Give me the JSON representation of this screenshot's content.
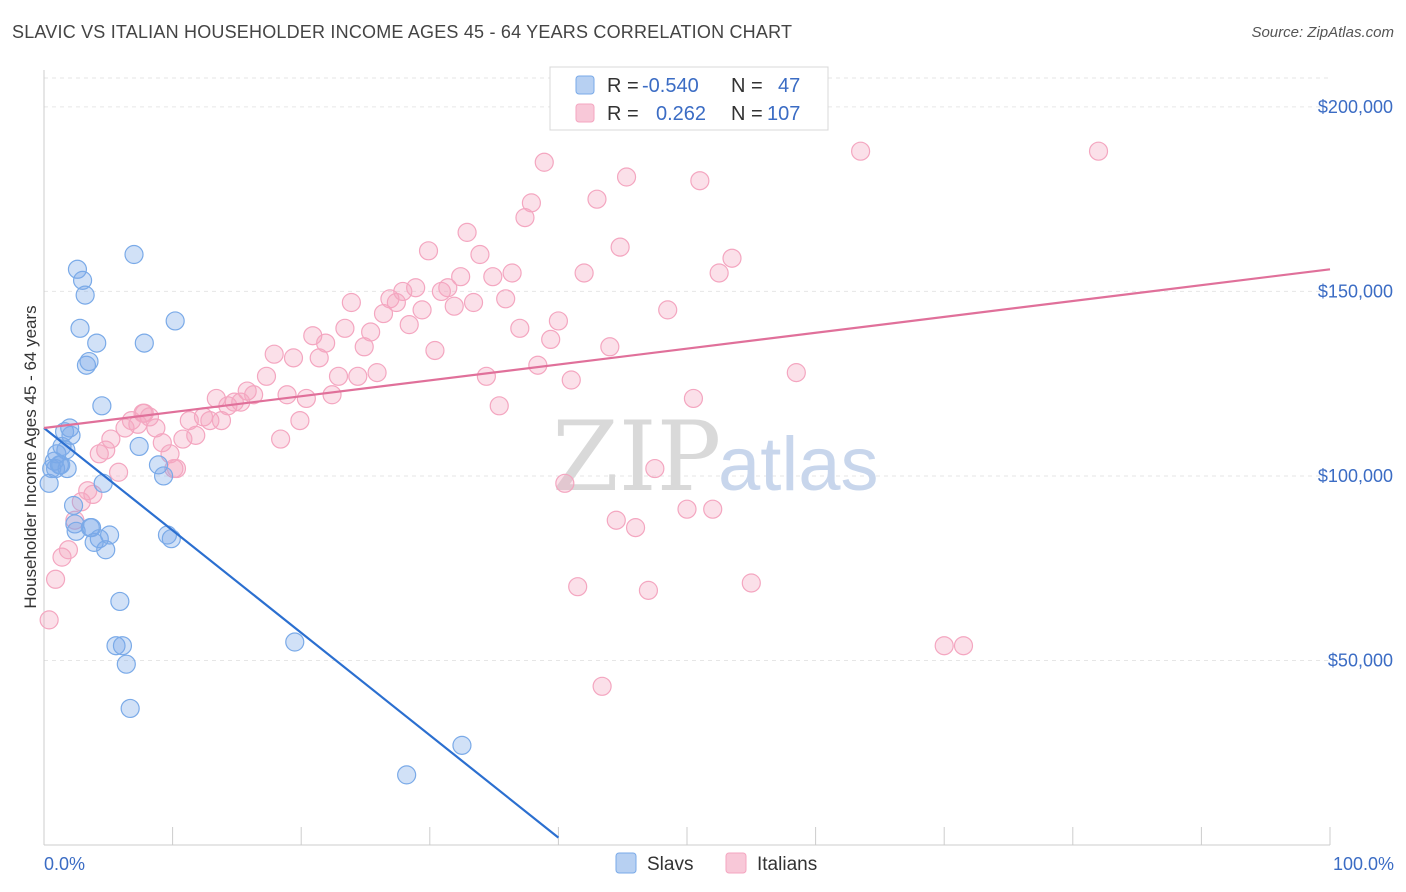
{
  "header": {
    "title": "SLAVIC VS ITALIAN HOUSEHOLDER INCOME AGES 45 - 64 YEARS CORRELATION CHART",
    "source": "Source: ZipAtlas.com"
  },
  "watermark": {
    "part1": "ZIP",
    "part2": "atlas"
  },
  "legend": {
    "r_label": "R =",
    "n_label": "N =",
    "rows": [
      {
        "series": "Slavs",
        "r": "-0.540",
        "n": "47"
      },
      {
        "series": "Italians",
        "r": "0.262",
        "n": "107"
      }
    ]
  },
  "chart_data": {
    "type": "scatter",
    "title": "SLAVIC VS ITALIAN HOUSEHOLDER INCOME AGES 45 - 64 YEARS CORRELATION CHART",
    "xlabel": "",
    "ylabel": "Householder Income Ages 45 - 64 years",
    "xlim": [
      0,
      100
    ],
    "ylim": [
      0,
      210000
    ],
    "x_tick_labels": [
      "0.0%",
      "100.0%"
    ],
    "y_ticks": [
      50000,
      100000,
      150000,
      200000
    ],
    "y_tick_labels": [
      "$50,000",
      "$100,000",
      "$150,000",
      "$200,000"
    ],
    "colors": {
      "Slavs": "#7aaae8",
      "Italians": "#f4a6c0",
      "Slavs_line": "#2b6fd0",
      "Italians_line": "#e0709a"
    },
    "series": [
      {
        "name": "Slavs",
        "r": -0.54,
        "n": 47,
        "trend": {
          "x0": 0.0,
          "y0": 113000,
          "x1": 40.0,
          "y1": 2000
        },
        "points": [
          [
            0.4,
            98000
          ],
          [
            0.6,
            102000
          ],
          [
            0.8,
            104000
          ],
          [
            1.0,
            106000
          ],
          [
            1.2,
            103000
          ],
          [
            1.4,
            108000
          ],
          [
            1.6,
            112000
          ],
          [
            1.7,
            107000
          ],
          [
            1.8,
            102000
          ],
          [
            2.0,
            113000
          ],
          [
            2.1,
            111000
          ],
          [
            2.3,
            92000
          ],
          [
            2.4,
            87000
          ],
          [
            2.5,
            85000
          ],
          [
            2.6,
            156000
          ],
          [
            2.8,
            140000
          ],
          [
            3.0,
            153000
          ],
          [
            3.2,
            149000
          ],
          [
            3.3,
            130000
          ],
          [
            3.5,
            131000
          ],
          [
            3.6,
            86000
          ],
          [
            3.7,
            86000
          ],
          [
            3.9,
            82000
          ],
          [
            4.1,
            136000
          ],
          [
            4.3,
            83000
          ],
          [
            4.5,
            119000
          ],
          [
            4.6,
            98000
          ],
          [
            4.8,
            80000
          ],
          [
            5.1,
            84000
          ],
          [
            5.6,
            54000
          ],
          [
            5.9,
            66000
          ],
          [
            6.1,
            54000
          ],
          [
            6.4,
            49000
          ],
          [
            6.7,
            37000
          ],
          [
            7.0,
            160000
          ],
          [
            7.4,
            108000
          ],
          [
            7.8,
            136000
          ],
          [
            8.9,
            103000
          ],
          [
            9.3,
            100000
          ],
          [
            9.6,
            84000
          ],
          [
            9.9,
            83000
          ],
          [
            10.2,
            142000
          ],
          [
            19.5,
            55000
          ],
          [
            0.9,
            102000
          ],
          [
            1.3,
            103000
          ],
          [
            28.2,
            19000
          ],
          [
            32.5,
            27000
          ]
        ]
      },
      {
        "name": "Italians",
        "r": 0.262,
        "n": 107,
        "trend": {
          "x0": 0.0,
          "y0": 113000,
          "x1": 100.0,
          "y1": 156000
        },
        "points": [
          [
            0.4,
            61000
          ],
          [
            0.9,
            72000
          ],
          [
            1.4,
            78000
          ],
          [
            1.9,
            80000
          ],
          [
            2.4,
            88000
          ],
          [
            2.9,
            93000
          ],
          [
            3.4,
            96000
          ],
          [
            3.8,
            95000
          ],
          [
            4.3,
            106000
          ],
          [
            4.8,
            107000
          ],
          [
            5.2,
            110000
          ],
          [
            5.8,
            101000
          ],
          [
            6.3,
            113000
          ],
          [
            6.8,
            115000
          ],
          [
            7.3,
            114000
          ],
          [
            7.8,
            117000
          ],
          [
            8.2,
            116000
          ],
          [
            8.7,
            113000
          ],
          [
            9.2,
            109000
          ],
          [
            9.8,
            106000
          ],
          [
            10.3,
            102000
          ],
          [
            10.8,
            110000
          ],
          [
            11.3,
            115000
          ],
          [
            11.8,
            111000
          ],
          [
            12.4,
            116000
          ],
          [
            12.9,
            115000
          ],
          [
            13.4,
            121000
          ],
          [
            13.8,
            115000
          ],
          [
            14.3,
            119000
          ],
          [
            14.8,
            120000
          ],
          [
            15.3,
            120000
          ],
          [
            15.8,
            123000
          ],
          [
            16.3,
            122000
          ],
          [
            17.3,
            127000
          ],
          [
            17.9,
            133000
          ],
          [
            18.4,
            110000
          ],
          [
            18.9,
            122000
          ],
          [
            19.4,
            132000
          ],
          [
            19.9,
            115000
          ],
          [
            20.4,
            121000
          ],
          [
            20.9,
            138000
          ],
          [
            21.4,
            132000
          ],
          [
            21.9,
            136000
          ],
          [
            22.4,
            122000
          ],
          [
            22.9,
            127000
          ],
          [
            23.4,
            140000
          ],
          [
            23.9,
            147000
          ],
          [
            24.4,
            127000
          ],
          [
            24.9,
            135000
          ],
          [
            25.4,
            139000
          ],
          [
            25.9,
            128000
          ],
          [
            26.4,
            144000
          ],
          [
            26.9,
            148000
          ],
          [
            27.4,
            147000
          ],
          [
            27.9,
            150000
          ],
          [
            28.4,
            141000
          ],
          [
            28.9,
            151000
          ],
          [
            29.4,
            145000
          ],
          [
            29.9,
            161000
          ],
          [
            30.4,
            134000
          ],
          [
            30.9,
            150000
          ],
          [
            31.4,
            151000
          ],
          [
            31.9,
            146000
          ],
          [
            32.4,
            154000
          ],
          [
            32.9,
            166000
          ],
          [
            33.4,
            147000
          ],
          [
            33.9,
            160000
          ],
          [
            34.4,
            127000
          ],
          [
            34.9,
            154000
          ],
          [
            35.4,
            119000
          ],
          [
            35.9,
            148000
          ],
          [
            36.4,
            155000
          ],
          [
            37.0,
            140000
          ],
          [
            37.4,
            170000
          ],
          [
            37.9,
            174000
          ],
          [
            38.4,
            130000
          ],
          [
            38.9,
            185000
          ],
          [
            39.4,
            137000
          ],
          [
            40.0,
            142000
          ],
          [
            40.5,
            98000
          ],
          [
            41.0,
            126000
          ],
          [
            41.5,
            70000
          ],
          [
            42.0,
            155000
          ],
          [
            43.0,
            175000
          ],
          [
            43.4,
            43000
          ],
          [
            44.0,
            135000
          ],
          [
            44.5,
            88000
          ],
          [
            44.8,
            162000
          ],
          [
            45.3,
            181000
          ],
          [
            46.0,
            86000
          ],
          [
            47.0,
            69000
          ],
          [
            47.5,
            102000
          ],
          [
            48.5,
            145000
          ],
          [
            50.0,
            91000
          ],
          [
            50.5,
            121000
          ],
          [
            51.0,
            180000
          ],
          [
            52.0,
            91000
          ],
          [
            52.5,
            155000
          ],
          [
            53.5,
            159000
          ],
          [
            55.0,
            71000
          ],
          [
            58.5,
            128000
          ],
          [
            63.5,
            188000
          ],
          [
            70.0,
            54000
          ],
          [
            71.5,
            54000
          ],
          [
            82.0,
            188000
          ],
          [
            7.7,
            117000
          ],
          [
            10.1,
            102000
          ]
        ]
      }
    ]
  }
}
